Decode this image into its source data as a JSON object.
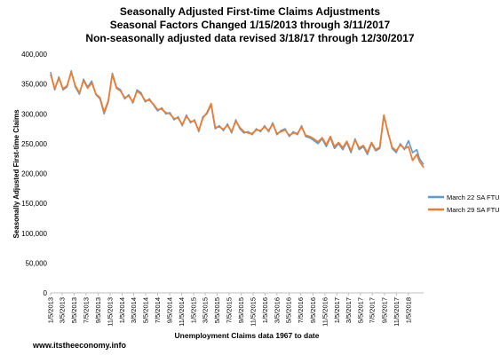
{
  "chart_data": {
    "type": "line",
    "title_lines": [
      "Seasonally Adjusted First-time Claims Adjustments",
      "Seasonal Factors Changed 1/15/2013 through 3/11/2017",
      "Non-seasonally adjusted data revised 3/18/17 through 12/30/2017"
    ],
    "xlabel": "Unemployment Claims data 1967 to date",
    "ylabel": "Seasonally Adjusted First-time Claims",
    "ylim": [
      0,
      400000
    ],
    "y_ticks": [
      {
        "value": 0,
        "label": "0"
      },
      {
        "value": 50000,
        "label": "50,000"
      },
      {
        "value": 100000,
        "label": "100,000"
      },
      {
        "value": 150000,
        "label": "150,000"
      },
      {
        "value": 200000,
        "label": "200,000"
      },
      {
        "value": 250000,
        "label": "250,000"
      },
      {
        "value": 300000,
        "label": "300,000"
      },
      {
        "value": 350000,
        "label": "350,000"
      },
      {
        "value": 400000,
        "label": "400,000"
      }
    ],
    "x_range": [
      "2013-01-05",
      "2018-03-24"
    ],
    "x_ticks": [
      "1/5/2013",
      "3/5/2013",
      "5/5/2013",
      "7/5/2013",
      "9/5/2013",
      "11/5/2013",
      "1/5/2014",
      "3/5/2014",
      "5/5/2014",
      "7/5/2014",
      "9/5/2014",
      "11/5/2014",
      "1/5/2015",
      "3/5/2015",
      "5/5/2015",
      "7/5/2015",
      "9/5/2015",
      "11/5/2015",
      "1/5/2016",
      "3/5/2016",
      "5/5/2016",
      "7/5/2016",
      "9/5/2016",
      "11/5/2016",
      "1/5/2017",
      "3/5/2017",
      "5/5/2017",
      "7/5/2017",
      "9/5/2017",
      "11/5/2017",
      "1/5/2018"
    ],
    "grid": false,
    "legend": "right",
    "series": [
      {
        "name": "March 22 SA FTU",
        "color": "#5b9bd5",
        "points": [
          [
            "2013-01-05",
            370000
          ],
          [
            "2013-01-26",
            340000
          ],
          [
            "2013-02-16",
            362000
          ],
          [
            "2013-03-09",
            340000
          ],
          [
            "2013-03-30",
            345000
          ],
          [
            "2013-04-20",
            372000
          ],
          [
            "2013-05-11",
            345000
          ],
          [
            "2013-06-01",
            333000
          ],
          [
            "2013-06-22",
            358000
          ],
          [
            "2013-07-13",
            345000
          ],
          [
            "2013-08-03",
            355000
          ],
          [
            "2013-08-24",
            332000
          ],
          [
            "2013-09-14",
            325000
          ],
          [
            "2013-10-05",
            300000
          ],
          [
            "2013-10-26",
            320000
          ],
          [
            "2013-11-16",
            368000
          ],
          [
            "2013-12-07",
            345000
          ],
          [
            "2013-12-28",
            340000
          ],
          [
            "2014-01-18",
            325000
          ],
          [
            "2014-02-08",
            332000
          ],
          [
            "2014-03-01",
            318000
          ],
          [
            "2014-03-22",
            340000
          ],
          [
            "2014-04-12",
            335000
          ],
          [
            "2014-05-03",
            320000
          ],
          [
            "2014-05-24",
            325000
          ],
          [
            "2014-06-14",
            315000
          ],
          [
            "2014-07-05",
            305000
          ],
          [
            "2014-07-26",
            310000
          ],
          [
            "2014-08-16",
            300000
          ],
          [
            "2014-09-06",
            302000
          ],
          [
            "2014-09-27",
            290000
          ],
          [
            "2014-10-18",
            295000
          ],
          [
            "2014-11-08",
            280000
          ],
          [
            "2014-11-29",
            298000
          ],
          [
            "2014-12-20",
            285000
          ],
          [
            "2015-01-10",
            290000
          ],
          [
            "2015-01-31",
            270000
          ],
          [
            "2015-02-21",
            295000
          ],
          [
            "2015-03-14",
            300000
          ],
          [
            "2015-04-04",
            315000
          ],
          [
            "2015-04-25",
            275000
          ],
          [
            "2015-05-16",
            280000
          ],
          [
            "2015-06-06",
            272000
          ],
          [
            "2015-06-27",
            283000
          ],
          [
            "2015-07-18",
            268000
          ],
          [
            "2015-08-08",
            290000
          ],
          [
            "2015-08-29",
            275000
          ],
          [
            "2015-09-19",
            268000
          ],
          [
            "2015-10-10",
            270000
          ],
          [
            "2015-10-31",
            265000
          ],
          [
            "2015-11-21",
            275000
          ],
          [
            "2015-12-12",
            270000
          ],
          [
            "2016-01-02",
            280000
          ],
          [
            "2016-01-23",
            270000
          ],
          [
            "2016-02-13",
            285000
          ],
          [
            "2016-03-05",
            265000
          ],
          [
            "2016-03-26",
            272000
          ],
          [
            "2016-04-16",
            275000
          ],
          [
            "2016-05-07",
            262000
          ],
          [
            "2016-05-28",
            270000
          ],
          [
            "2016-06-18",
            265000
          ],
          [
            "2016-07-09",
            280000
          ],
          [
            "2016-07-30",
            262000
          ],
          [
            "2016-08-20",
            260000
          ],
          [
            "2016-09-10",
            255000
          ],
          [
            "2016-10-01",
            250000
          ],
          [
            "2016-10-22",
            258000
          ],
          [
            "2016-11-12",
            245000
          ],
          [
            "2016-12-03",
            260000
          ],
          [
            "2016-12-24",
            242000
          ],
          [
            "2017-01-14",
            250000
          ],
          [
            "2017-02-04",
            240000
          ],
          [
            "2017-02-25",
            252000
          ],
          [
            "2017-03-18",
            235000
          ],
          [
            "2017-04-08",
            258000
          ],
          [
            "2017-04-29",
            240000
          ],
          [
            "2017-05-20",
            245000
          ],
          [
            "2017-06-10",
            232000
          ],
          [
            "2017-07-01",
            250000
          ],
          [
            "2017-07-22",
            238000
          ],
          [
            "2017-08-12",
            242000
          ],
          [
            "2017-09-02",
            296000
          ],
          [
            "2017-09-23",
            270000
          ],
          [
            "2017-10-14",
            242000
          ],
          [
            "2017-11-04",
            235000
          ],
          [
            "2017-11-25",
            250000
          ],
          [
            "2017-12-16",
            240000
          ],
          [
            "2018-01-06",
            255000
          ],
          [
            "2018-01-27",
            235000
          ],
          [
            "2018-02-17",
            240000
          ],
          [
            "2018-03-03",
            225000
          ],
          [
            "2018-03-24",
            215000
          ]
        ]
      },
      {
        "name": "March 29 SA FTU",
        "color": "#ed7d31",
        "points": [
          [
            "2013-01-05",
            366000
          ],
          [
            "2013-01-26",
            342000
          ],
          [
            "2013-02-16",
            360000
          ],
          [
            "2013-03-09",
            342000
          ],
          [
            "2013-03-30",
            347000
          ],
          [
            "2013-04-20",
            370000
          ],
          [
            "2013-05-11",
            347000
          ],
          [
            "2013-06-01",
            335000
          ],
          [
            "2013-06-22",
            356000
          ],
          [
            "2013-07-13",
            343000
          ],
          [
            "2013-08-03",
            352000
          ],
          [
            "2013-08-24",
            333000
          ],
          [
            "2013-09-14",
            327000
          ],
          [
            "2013-10-05",
            303000
          ],
          [
            "2013-10-26",
            322000
          ],
          [
            "2013-11-16",
            366000
          ],
          [
            "2013-12-07",
            343000
          ],
          [
            "2013-12-28",
            338000
          ],
          [
            "2014-01-18",
            327000
          ],
          [
            "2014-02-08",
            330000
          ],
          [
            "2014-03-01",
            320000
          ],
          [
            "2014-03-22",
            338000
          ],
          [
            "2014-04-12",
            333000
          ],
          [
            "2014-05-03",
            322000
          ],
          [
            "2014-05-24",
            323000
          ],
          [
            "2014-06-14",
            316000
          ],
          [
            "2014-07-05",
            307000
          ],
          [
            "2014-07-26",
            308000
          ],
          [
            "2014-08-16",
            302000
          ],
          [
            "2014-09-06",
            300000
          ],
          [
            "2014-09-27",
            292000
          ],
          [
            "2014-10-18",
            293000
          ],
          [
            "2014-11-08",
            282000
          ],
          [
            "2014-11-29",
            296000
          ],
          [
            "2014-12-20",
            287000
          ],
          [
            "2015-01-10",
            288000
          ],
          [
            "2015-01-31",
            272000
          ],
          [
            "2015-02-21",
            293000
          ],
          [
            "2015-03-14",
            302000
          ],
          [
            "2015-04-04",
            317000
          ],
          [
            "2015-04-25",
            277000
          ],
          [
            "2015-05-16",
            278000
          ],
          [
            "2015-06-06",
            274000
          ],
          [
            "2015-06-27",
            281000
          ],
          [
            "2015-07-18",
            270000
          ],
          [
            "2015-08-08",
            288000
          ],
          [
            "2015-08-29",
            277000
          ],
          [
            "2015-09-19",
            270000
          ],
          [
            "2015-10-10",
            268000
          ],
          [
            "2015-10-31",
            267000
          ],
          [
            "2015-11-21",
            273000
          ],
          [
            "2015-12-12",
            272000
          ],
          [
            "2016-01-02",
            278000
          ],
          [
            "2016-01-23",
            272000
          ],
          [
            "2016-02-13",
            283000
          ],
          [
            "2016-03-05",
            267000
          ],
          [
            "2016-03-26",
            270000
          ],
          [
            "2016-04-16",
            273000
          ],
          [
            "2016-05-07",
            264000
          ],
          [
            "2016-05-28",
            268000
          ],
          [
            "2016-06-18",
            267000
          ],
          [
            "2016-07-09",
            278000
          ],
          [
            "2016-07-30",
            264000
          ],
          [
            "2016-08-20",
            262000
          ],
          [
            "2016-09-10",
            258000
          ],
          [
            "2016-10-01",
            253000
          ],
          [
            "2016-10-22",
            260000
          ],
          [
            "2016-11-12",
            248000
          ],
          [
            "2016-12-03",
            262000
          ],
          [
            "2016-12-24",
            245000
          ],
          [
            "2017-01-14",
            252000
          ],
          [
            "2017-02-04",
            243000
          ],
          [
            "2017-02-25",
            254000
          ],
          [
            "2017-03-18",
            238000
          ],
          [
            "2017-04-08",
            256000
          ],
          [
            "2017-04-29",
            243000
          ],
          [
            "2017-05-20",
            247000
          ],
          [
            "2017-06-10",
            235000
          ],
          [
            "2017-07-01",
            252000
          ],
          [
            "2017-07-22",
            240000
          ],
          [
            "2017-08-12",
            244000
          ],
          [
            "2017-09-02",
            298000
          ],
          [
            "2017-09-23",
            268000
          ],
          [
            "2017-10-14",
            244000
          ],
          [
            "2017-11-04",
            238000
          ],
          [
            "2017-11-25",
            248000
          ],
          [
            "2017-12-16",
            242000
          ],
          [
            "2018-01-06",
            245000
          ],
          [
            "2018-01-27",
            222000
          ],
          [
            "2018-02-17",
            232000
          ],
          [
            "2018-03-03",
            220000
          ],
          [
            "2018-03-24",
            210000
          ]
        ]
      }
    ]
  },
  "footer": "www.itstheeconomy.info"
}
